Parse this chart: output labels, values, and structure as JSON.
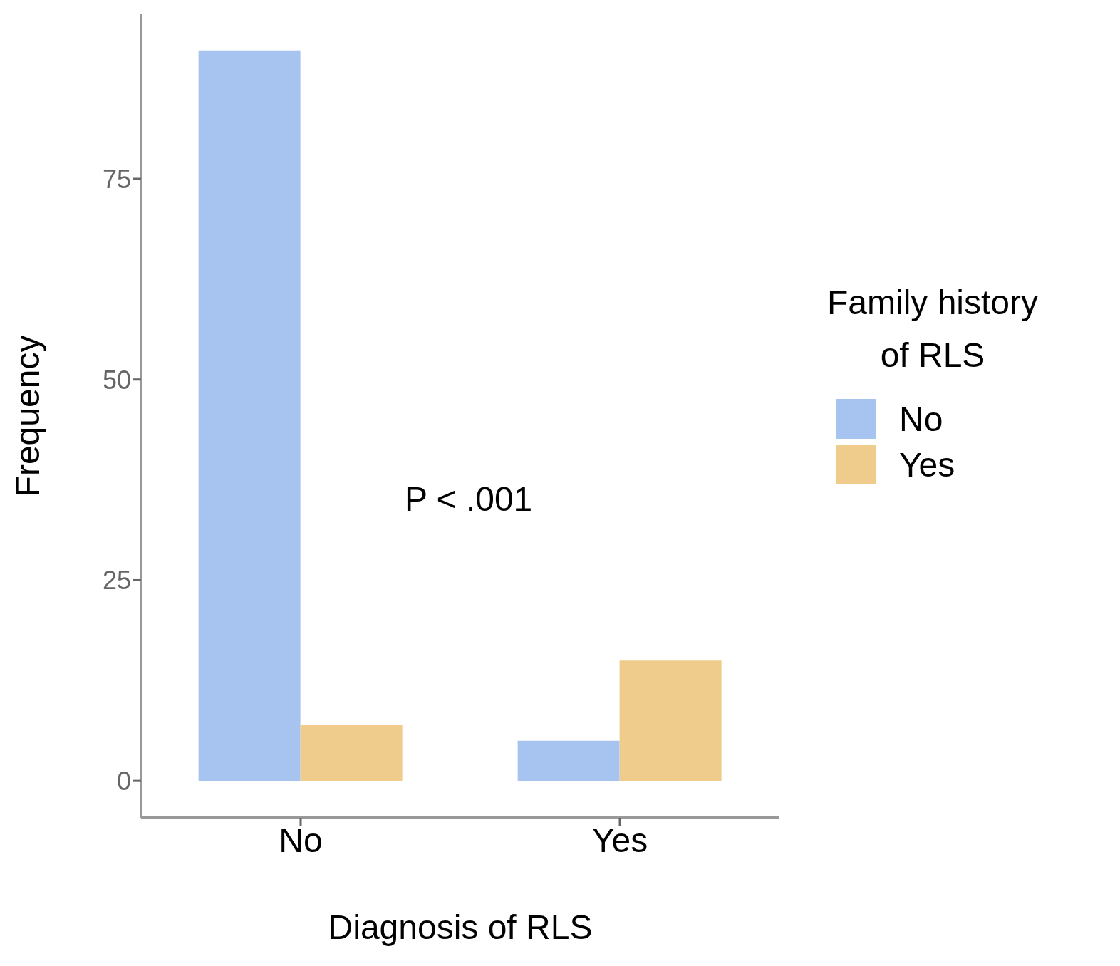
{
  "chart_data": {
    "type": "bar",
    "xlabel": "Diagnosis of RLS",
    "ylabel": "Frequency",
    "legend_title": "Family history of RLS",
    "categories": [
      "No",
      "Yes"
    ],
    "series": [
      {
        "name": "No",
        "color": "#a7c4f0",
        "values": [
          91,
          5
        ]
      },
      {
        "name": "Yes",
        "color": "#efcb8c",
        "values": [
          7,
          15
        ]
      }
    ],
    "ylim": [
      -4.6,
      95.5
    ],
    "yticks": [
      0,
      25,
      50,
      75
    ],
    "legend": "right",
    "annotations": [
      "P < .001"
    ]
  }
}
